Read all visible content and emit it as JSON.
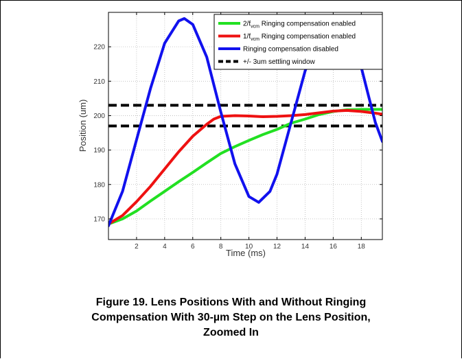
{
  "caption": {
    "line1": "Figure 19. Lens Positions With and Without Ringing",
    "line2": "Compensation With 30-µm Step on the Lens Position,",
    "line3": "Zoomed In"
  },
  "chart_data": {
    "type": "line",
    "xlabel": "Time (ms)",
    "ylabel": "Position (um)",
    "xlim": [
      0,
      19.5
    ],
    "ylim": [
      164,
      230
    ],
    "xticks": [
      2,
      4,
      6,
      8,
      10,
      12,
      14,
      16,
      18
    ],
    "yticks": [
      170,
      180,
      190,
      200,
      210,
      220
    ],
    "grid": true,
    "legend_position": "top-right",
    "legend": [
      {
        "pre": "2/f",
        "sub": "vcm",
        "post": " Ringing compensation enabled"
      },
      {
        "pre": "1/f",
        "sub": "vcm",
        "post": " Ringing compensation enabled"
      },
      {
        "pre": "Ringing compensation disabled",
        "sub": "",
        "post": ""
      },
      {
        "pre": "+/- 3um settling window",
        "sub": "",
        "post": ""
      }
    ],
    "series": [
      {
        "name": "2/fvcm Ringing compensation enabled",
        "color": "#22e022",
        "x": [
          0,
          1,
          2,
          3,
          4,
          5,
          6,
          7,
          8,
          9,
          10,
          11,
          12,
          13,
          14,
          15,
          16,
          17,
          18,
          19.5
        ],
        "y": [
          168.5,
          170,
          172.3,
          175.2,
          178,
          180.8,
          183.5,
          186.3,
          189,
          191,
          192.8,
          194.5,
          196,
          197.8,
          199,
          200.3,
          201.2,
          201.7,
          201.8,
          201.8
        ]
      },
      {
        "name": "1/fvcm Ringing compensation enabled",
        "color": "#ee1111",
        "x": [
          0,
          1,
          2,
          3,
          4,
          5,
          6,
          7,
          7.5,
          8,
          9,
          10,
          11,
          12,
          13,
          14,
          15,
          16,
          17,
          18,
          19,
          19.5
        ],
        "y": [
          168.5,
          171,
          175,
          179.5,
          184.5,
          189.5,
          194,
          197.5,
          199,
          199.8,
          200,
          199.9,
          199.7,
          199.8,
          200,
          200.3,
          200.8,
          201.3,
          201.5,
          201.2,
          200.7,
          200.4
        ]
      },
      {
        "name": "Ringing compensation disabled",
        "color": "#1111ee",
        "x": [
          0,
          1,
          2,
          3,
          4,
          5,
          5.4,
          6,
          7,
          8,
          9,
          10,
          10.7,
          11.5,
          12,
          13,
          14,
          15,
          15.5
        ],
        "y": [
          168,
          178,
          193,
          208,
          221,
          227.5,
          228.2,
          226.5,
          217,
          201,
          186,
          176.5,
          174.8,
          178,
          183,
          198,
          213,
          223,
          225
        ]
      },
      {
        "name": "Ringing compensation disabled (tail)",
        "color": "#1111ee",
        "x": [
          17.4,
          18,
          18.5,
          19,
          19.5
        ],
        "y": [
          223,
          214,
          206,
          198,
          192.5
        ]
      }
    ],
    "settling_window": {
      "upper": 203,
      "lower": 197,
      "color": "#000000"
    }
  }
}
